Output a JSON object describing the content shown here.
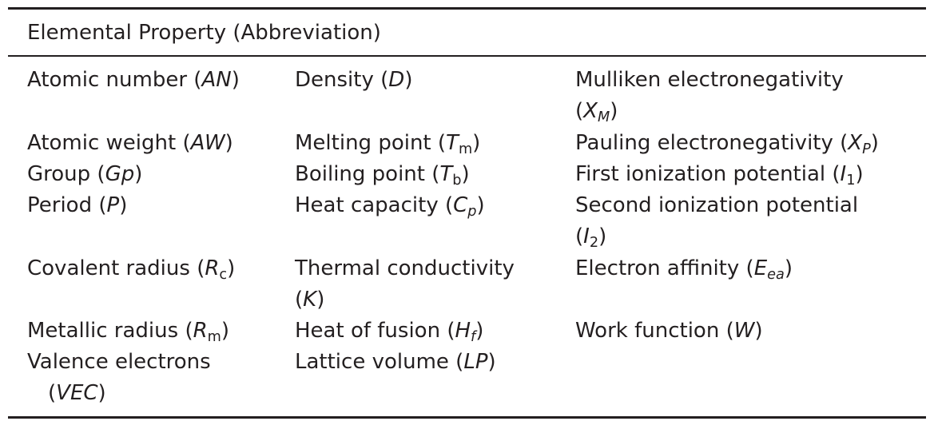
{
  "table": {
    "header": "Elemental Property (Abbreviation)",
    "columns": [
      [
        {
          "name": "Atomic number",
          "abbr": "AN",
          "sub": "",
          "sub_italic": false
        },
        {
          "name": "Atomic weight",
          "abbr": "AW",
          "sub": "",
          "sub_italic": false
        },
        {
          "name": "Group",
          "abbr": "Gp",
          "sub": "",
          "sub_italic": false
        },
        {
          "name": "Period",
          "abbr": "P",
          "sub": "",
          "sub_italic": false
        },
        {
          "name": "Covalent radius",
          "abbr": "R",
          "sub": "c",
          "sub_italic": false
        },
        {
          "name": "Metallic radius",
          "abbr": "R",
          "sub": "m",
          "sub_italic": false
        },
        {
          "name": "Valence electrons",
          "abbr": "VEC",
          "sub": "",
          "sub_italic": false
        }
      ],
      [
        {
          "name": "Density",
          "abbr": "D",
          "sub": "",
          "sub_italic": false
        },
        {
          "name": "Melting point",
          "abbr": "T",
          "sub": "m",
          "sub_italic": false
        },
        {
          "name": "Boiling point",
          "abbr": "T",
          "sub": "b",
          "sub_italic": false
        },
        {
          "name": "Heat capacity",
          "abbr": "C",
          "sub": "p",
          "sub_italic": true
        },
        {
          "name": "Thermal conductivity",
          "abbr": "K",
          "sub": "",
          "sub_italic": false
        },
        {
          "name": "Heat of fusion",
          "abbr": "H",
          "sub": "f",
          "sub_italic": true
        },
        {
          "name": "Lattice volume",
          "abbr": "LP",
          "sub": "",
          "sub_italic": false
        }
      ],
      [
        {
          "name": "Mulliken electronegativity",
          "abbr": "X",
          "sub": "M",
          "sub_italic": true
        },
        {
          "name": "Pauling electronegativity",
          "abbr": "X",
          "sub": "P",
          "sub_italic": true
        },
        {
          "name": "First ionization potential",
          "abbr": "I",
          "sub": "1",
          "sub_italic": false
        },
        {
          "name": "Second ionization potential",
          "abbr": "I",
          "sub": "2",
          "sub_italic": false
        },
        {
          "name": "Electron affinity",
          "abbr": "E",
          "sub": "ea",
          "sub_italic": true
        },
        {
          "name": "Work function",
          "abbr": "W",
          "sub": "",
          "sub_italic": false
        }
      ]
    ]
  }
}
